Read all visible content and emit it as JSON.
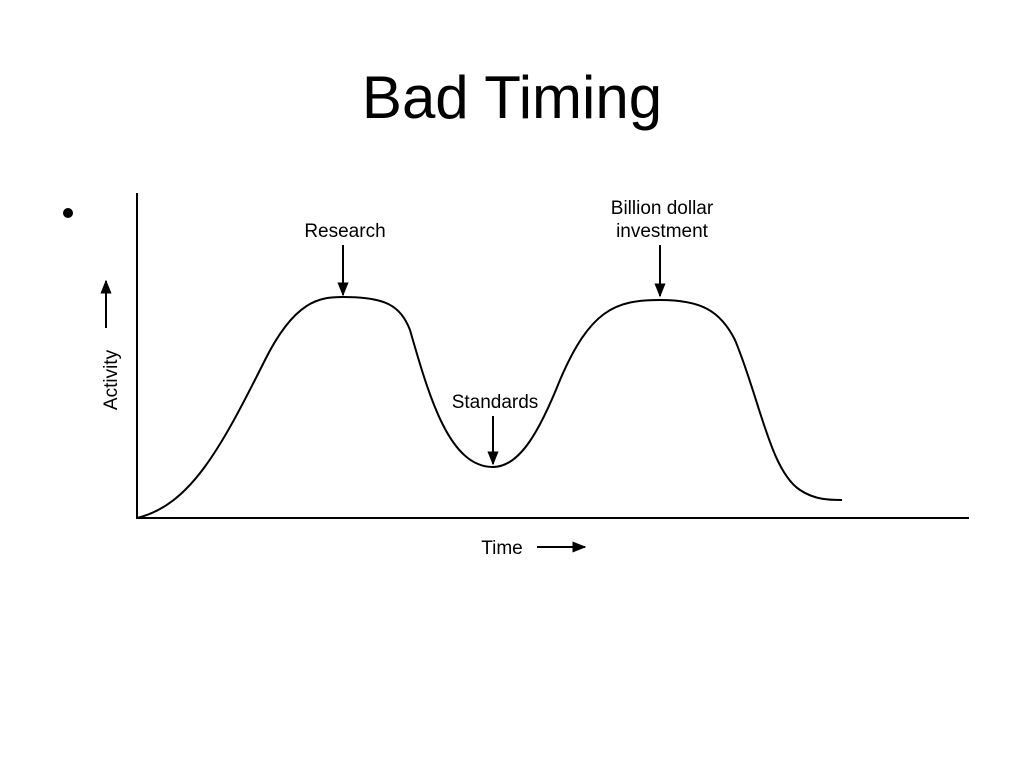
{
  "slide": {
    "title": "Bad Timing",
    "diagram": {
      "y_axis_label": "Activity",
      "x_axis_label": "Time",
      "annotations": [
        {
          "lines": [
            "Research"
          ]
        },
        {
          "lines": [
            "Standards"
          ]
        },
        {
          "lines": [
            "Billion dollar",
            "investment"
          ]
        }
      ]
    }
  }
}
